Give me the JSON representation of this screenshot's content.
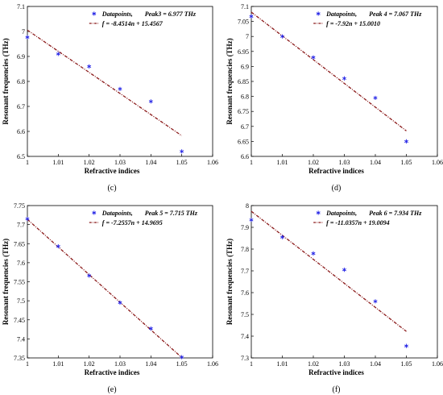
{
  "colors": {
    "marker": "#2323e6",
    "fit_line": "#8b1a1a",
    "axis": "#000000"
  },
  "chart_data": [
    {
      "type": "scatter",
      "panel_label": "(c)",
      "xlabel": "Refractive indices",
      "ylabel": "Resonant frequencies (THz)",
      "xlim": [
        1,
        1.06
      ],
      "ylim": [
        6.5,
        7.1
      ],
      "x_ticks": [
        "1",
        "1.01",
        "1.02",
        "1.03",
        "1.04",
        "1.05",
        "1.06"
      ],
      "y_ticks": [
        "6.5",
        "6.6",
        "6.7",
        "6.8",
        "6.9",
        "7",
        "7.1"
      ],
      "legend": {
        "datapoints": "Datapoints,",
        "peak": "Peak3 = 6.977 THz",
        "fit": "f = -8.4514n + 15.4567"
      },
      "legend_placement": "top-right",
      "series": [
        {
          "name": "Datapoints",
          "style": "marker",
          "x": [
            1,
            1.01,
            1.02,
            1.03,
            1.04,
            1.05
          ],
          "y": [
            6.977,
            6.91,
            6.86,
            6.77,
            6.72,
            6.52
          ]
        },
        {
          "name": "f = -8.4514n + 15.4567",
          "style": "dashdot-line",
          "slope": -8.4514,
          "intercept": 15.4567,
          "x_range": [
            1,
            1.05
          ]
        }
      ]
    },
    {
      "type": "scatter",
      "panel_label": "(d)",
      "xlabel": "Refractive indices",
      "ylabel": "Resonant frequencies (THz)",
      "xlim": [
        1,
        1.06
      ],
      "ylim": [
        6.6,
        7.1
      ],
      "x_ticks": [
        "1",
        "1.01",
        "1.02",
        "1.03",
        "1.04",
        "1.05",
        "1.06"
      ],
      "y_ticks": [
        "6.6",
        "6.65",
        "6.7",
        "6.75",
        "6.8",
        "6.85",
        "6.9",
        "6.95",
        "7",
        "7.05",
        "7.1"
      ],
      "legend": {
        "datapoints": "Datapoints,",
        "peak": "Peak 4 = 7.067 THz",
        "fit": "f = -7.92n + 15.0010"
      },
      "legend_placement": "top-right",
      "series": [
        {
          "name": "Datapoints",
          "style": "marker",
          "x": [
            1,
            1.01,
            1.02,
            1.03,
            1.04,
            1.05
          ],
          "y": [
            7.067,
            7.0,
            6.93,
            6.86,
            6.795,
            6.65
          ]
        },
        {
          "name": "f = -7.92n + 15.0010",
          "style": "dashdot-line",
          "slope": -7.92,
          "intercept": 15.001,
          "x_range": [
            1,
            1.05
          ]
        }
      ]
    },
    {
      "type": "scatter",
      "panel_label": "(e)",
      "xlabel": "Refractive indices",
      "ylabel": "Resonant frequencies (THz)",
      "xlim": [
        1,
        1.06
      ],
      "ylim": [
        7.35,
        7.75
      ],
      "x_ticks": [
        "1",
        "1.01",
        "1.02",
        "1.03",
        "1.04",
        "1.05",
        "1.06"
      ],
      "y_ticks": [
        "7.35",
        "7.4",
        "7.45",
        "7.5",
        "7.55",
        "7.6",
        "7.65",
        "7.7",
        "7.75"
      ],
      "legend": {
        "datapoints": "Datapoints,",
        "peak": "Peak 5 = 7.715 THz",
        "fit": "f = -7.2557n + 14.9695"
      },
      "legend_placement": "top-right",
      "series": [
        {
          "name": "Datapoints",
          "style": "marker",
          "x": [
            1,
            1.01,
            1.02,
            1.03,
            1.04,
            1.05
          ],
          "y": [
            7.715,
            7.643,
            7.566,
            7.495,
            7.427,
            7.352
          ]
        },
        {
          "name": "f = -7.2557n + 14.9695",
          "style": "dashdot-line",
          "slope": -7.2557,
          "intercept": 14.9695,
          "x_range": [
            1,
            1.05
          ]
        }
      ]
    },
    {
      "type": "scatter",
      "panel_label": "(f)",
      "xlabel": "Refractive indices",
      "ylabel": "Resonant frequencies (THz)",
      "xlim": [
        1,
        1.06
      ],
      "ylim": [
        7.3,
        8.0
      ],
      "x_ticks": [
        "1",
        "1.01",
        "1.02",
        "1.03",
        "1.04",
        "1.05",
        "1.06"
      ],
      "y_ticks": [
        "7.3",
        "7.4",
        "7.5",
        "7.6",
        "7.7",
        "7.8",
        "7.9",
        "8"
      ],
      "legend": {
        "datapoints": "Datapoints,",
        "peak": "Peak 6 = 7.934 THz",
        "fit": "f = -11.0357n + 19.0094"
      },
      "legend_placement": "top-right",
      "series": [
        {
          "name": "Datapoints",
          "style": "marker",
          "x": [
            1,
            1.01,
            1.02,
            1.03,
            1.04,
            1.05
          ],
          "y": [
            7.934,
            7.855,
            7.78,
            7.705,
            7.56,
            7.355
          ]
        },
        {
          "name": "f = -11.0357n + 19.0094",
          "style": "dashdot-line",
          "slope": -11.0357,
          "intercept": 19.0094,
          "x_range": [
            1,
            1.05
          ]
        }
      ]
    }
  ]
}
